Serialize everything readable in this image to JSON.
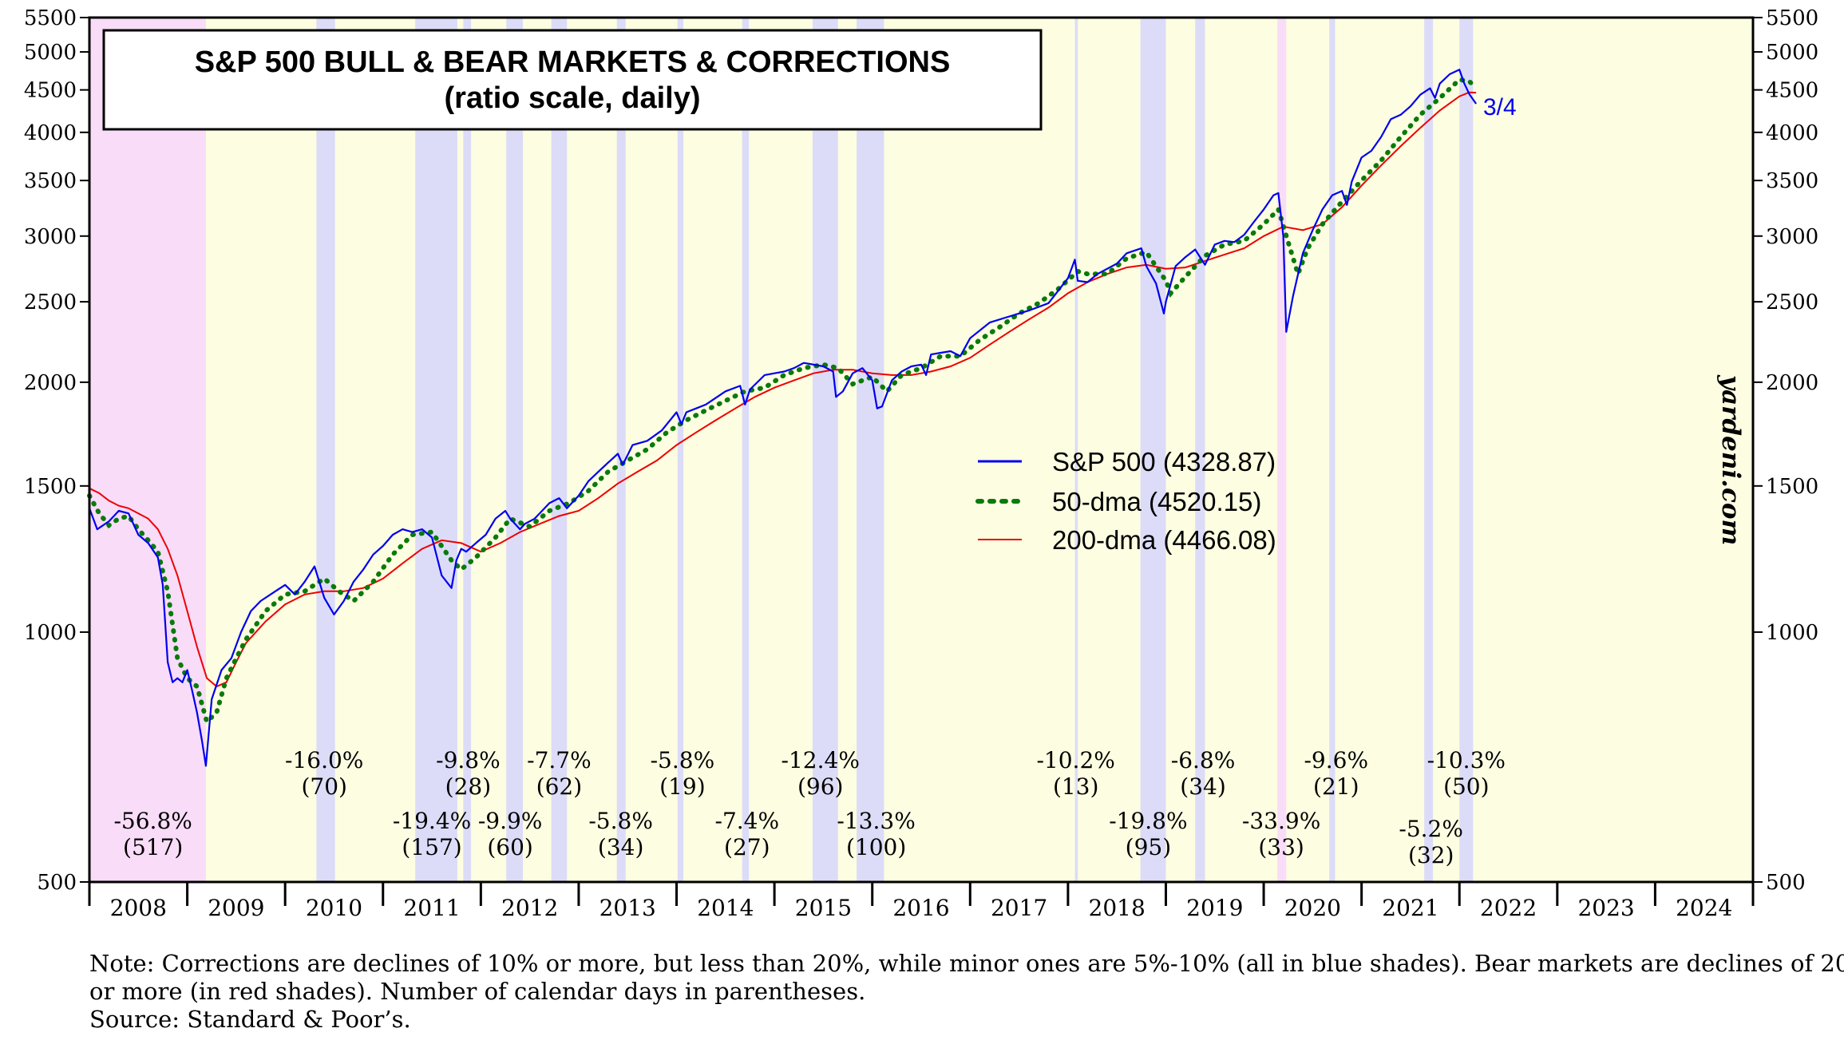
{
  "chart_data": {
    "type": "line",
    "title": "S&P 500 BULL & BEAR MARKETS & CORRECTIONS",
    "subtitle": "(ratio scale, daily)",
    "y_scale": "log",
    "ylim": [
      500,
      5500
    ],
    "y_ticks": [
      500,
      1000,
      1500,
      2000,
      2500,
      3000,
      3500,
      4000,
      4500,
      5000,
      5500
    ],
    "x_range": [
      2008.0,
      2025.0
    ],
    "x_tick_labels": [
      "2008",
      "2009",
      "2010",
      "2011",
      "2012",
      "2013",
      "2014",
      "2015",
      "2016",
      "2017",
      "2018",
      "2019",
      "2020",
      "2021",
      "2022",
      "2023",
      "2024"
    ],
    "legend": {
      "placement": "center-right",
      "entries": [
        {
          "label": "S&P 500 (4328.87)",
          "color": "#0000ee",
          "style": "solid"
        },
        {
          "label": "50-dma (4520.15)",
          "color": "#0a7a0a",
          "style": "dotted"
        },
        {
          "label": "200-dma (4466.08)",
          "color": "#ee0000",
          "style": "solid"
        }
      ]
    },
    "end_label": "3/4",
    "watermark": "yardeni.com",
    "colors": {
      "bear": "#f8dcf8",
      "correction": "#dcdcf8",
      "background": "#fdfde2",
      "sp500": "#0000ee",
      "dma50": "#0a7a0a",
      "dma200": "#ee0000"
    },
    "shaded_periods": [
      {
        "kind": "bear",
        "start": 2007.78,
        "end": 2009.19
      },
      {
        "kind": "correction",
        "start": 2010.32,
        "end": 2010.51
      },
      {
        "kind": "correction",
        "start": 2011.33,
        "end": 2011.76
      },
      {
        "kind": "correction",
        "start": 2011.82,
        "end": 2011.9
      },
      {
        "kind": "correction",
        "start": 2012.26,
        "end": 2012.43
      },
      {
        "kind": "correction",
        "start": 2012.72,
        "end": 2012.88
      },
      {
        "kind": "correction",
        "start": 2013.39,
        "end": 2013.48
      },
      {
        "kind": "correction",
        "start": 2014.01,
        "end": 2014.07
      },
      {
        "kind": "correction",
        "start": 2014.67,
        "end": 2014.74
      },
      {
        "kind": "correction",
        "start": 2015.39,
        "end": 2015.65
      },
      {
        "kind": "correction",
        "start": 2015.84,
        "end": 2016.12
      },
      {
        "kind": "correction",
        "start": 2018.07,
        "end": 2018.1
      },
      {
        "kind": "correction",
        "start": 2018.74,
        "end": 2019.0
      },
      {
        "kind": "correction",
        "start": 2019.3,
        "end": 2019.4
      },
      {
        "kind": "bear",
        "start": 2020.14,
        "end": 2020.23
      },
      {
        "kind": "correction",
        "start": 2020.67,
        "end": 2020.73
      },
      {
        "kind": "correction",
        "start": 2021.64,
        "end": 2021.73
      },
      {
        "kind": "correction",
        "start": 2022.0,
        "end": 2022.14
      }
    ],
    "annotations": [
      {
        "x": 2008.65,
        "pct": "-56.8%",
        "days": "(517)",
        "row": 3
      },
      {
        "x": 2010.4,
        "pct": "-16.0%",
        "days": "(70)",
        "row": 1
      },
      {
        "x": 2011.5,
        "pct": "-19.4%",
        "days": "(157)",
        "row": 3
      },
      {
        "x": 2011.87,
        "pct": "-9.8%",
        "days": "(28)",
        "row": 1
      },
      {
        "x": 2012.3,
        "pct": "-9.9%",
        "days": "(60)",
        "row": 3
      },
      {
        "x": 2012.8,
        "pct": "-7.7%",
        "days": "(62)",
        "row": 1
      },
      {
        "x": 2013.43,
        "pct": "-5.8%",
        "days": "(34)",
        "row": 3
      },
      {
        "x": 2014.06,
        "pct": "-5.8%",
        "days": "(19)",
        "row": 1
      },
      {
        "x": 2014.72,
        "pct": "-7.4%",
        "days": "(27)",
        "row": 3
      },
      {
        "x": 2015.47,
        "pct": "-12.4%",
        "days": "(96)",
        "row": 1
      },
      {
        "x": 2016.04,
        "pct": "-13.3%",
        "days": "(100)",
        "row": 3
      },
      {
        "x": 2018.08,
        "pct": "-10.2%",
        "days": "(13)",
        "row": 1
      },
      {
        "x": 2018.82,
        "pct": "-19.8%",
        "days": "(95)",
        "row": 3
      },
      {
        "x": 2019.38,
        "pct": "-6.8%",
        "days": "(34)",
        "row": 1
      },
      {
        "x": 2020.18,
        "pct": "-33.9%",
        "days": "(33)",
        "row": 3
      },
      {
        "x": 2020.74,
        "pct": "-9.6%",
        "days": "(21)",
        "row": 1
      },
      {
        "x": 2021.71,
        "pct": "-5.2%",
        "days": "(32)",
        "row": 4
      },
      {
        "x": 2022.07,
        "pct": "-10.3%",
        "days": "(50)",
        "row": 1
      }
    ],
    "series": [
      {
        "name": "S&P 500",
        "x": [
          2008.0,
          2008.08,
          2008.2,
          2008.3,
          2008.4,
          2008.5,
          2008.6,
          2008.7,
          2008.75,
          2008.8,
          2008.85,
          2008.9,
          2008.95,
          2009.0,
          2009.05,
          2009.1,
          2009.15,
          2009.19,
          2009.25,
          2009.35,
          2009.45,
          2009.55,
          2009.65,
          2009.75,
          2009.9,
          2010.0,
          2010.1,
          2010.2,
          2010.3,
          2010.4,
          2010.5,
          2010.6,
          2010.7,
          2010.8,
          2010.9,
          2011.0,
          2011.1,
          2011.2,
          2011.3,
          2011.4,
          2011.5,
          2011.6,
          2011.7,
          2011.75,
          2011.8,
          2011.85,
          2011.95,
          2012.05,
          2012.15,
          2012.25,
          2012.3,
          2012.4,
          2012.45,
          2012.55,
          2012.7,
          2012.8,
          2012.88,
          2013.0,
          2013.1,
          2013.2,
          2013.3,
          2013.4,
          2013.45,
          2013.55,
          2013.7,
          2013.85,
          2014.0,
          2014.05,
          2014.1,
          2014.2,
          2014.3,
          2014.5,
          2014.65,
          2014.7,
          2014.75,
          2014.9,
          2015.0,
          2015.1,
          2015.2,
          2015.3,
          2015.4,
          2015.5,
          2015.6,
          2015.63,
          2015.7,
          2015.8,
          2015.9,
          2016.0,
          2016.05,
          2016.1,
          2016.2,
          2016.3,
          2016.4,
          2016.5,
          2016.55,
          2016.6,
          2016.7,
          2016.8,
          2016.9,
          2017.0,
          2017.2,
          2017.4,
          2017.6,
          2017.8,
          2018.0,
          2018.07,
          2018.1,
          2018.2,
          2018.3,
          2018.5,
          2018.6,
          2018.75,
          2018.8,
          2018.9,
          2018.98,
          2019.0,
          2019.1,
          2019.2,
          2019.3,
          2019.4,
          2019.5,
          2019.6,
          2019.7,
          2019.8,
          2019.9,
          2020.0,
          2020.1,
          2020.15,
          2020.2,
          2020.23,
          2020.3,
          2020.4,
          2020.5,
          2020.6,
          2020.7,
          2020.8,
          2020.85,
          2020.9,
          2021.0,
          2021.1,
          2021.2,
          2021.3,
          2021.4,
          2021.5,
          2021.6,
          2021.7,
          2021.75,
          2021.8,
          2021.9,
          2022.0,
          2022.05,
          2022.1,
          2022.17
        ],
        "values": [
          1410,
          1330,
          1360,
          1400,
          1390,
          1310,
          1280,
          1230,
          1140,
          920,
          870,
          880,
          870,
          900,
          850,
          800,
          740,
          690,
          830,
          900,
          930,
          1000,
          1060,
          1090,
          1120,
          1140,
          1110,
          1150,
          1200,
          1100,
          1050,
          1090,
          1150,
          1190,
          1240,
          1270,
          1310,
          1330,
          1320,
          1330,
          1300,
          1170,
          1130,
          1220,
          1260,
          1250,
          1280,
          1310,
          1370,
          1400,
          1370,
          1330,
          1350,
          1370,
          1430,
          1450,
          1410,
          1460,
          1520,
          1560,
          1600,
          1640,
          1590,
          1680,
          1700,
          1750,
          1840,
          1780,
          1840,
          1860,
          1880,
          1950,
          1980,
          1880,
          1960,
          2040,
          2050,
          2060,
          2080,
          2110,
          2100,
          2090,
          2060,
          1920,
          1950,
          2050,
          2080,
          2010,
          1860,
          1870,
          2010,
          2060,
          2090,
          2100,
          2040,
          2160,
          2170,
          2180,
          2150,
          2260,
          2360,
          2400,
          2440,
          2490,
          2670,
          2810,
          2650,
          2640,
          2700,
          2780,
          2860,
          2900,
          2760,
          2630,
          2420,
          2500,
          2760,
          2830,
          2890,
          2770,
          2930,
          2960,
          2950,
          3010,
          3120,
          3230,
          3360,
          3380,
          3000,
          2300,
          2540,
          2860,
          3050,
          3230,
          3360,
          3400,
          3270,
          3490,
          3730,
          3800,
          3950,
          4150,
          4200,
          4300,
          4440,
          4520,
          4400,
          4580,
          4700,
          4760,
          4580,
          4450,
          4330
        ]
      },
      {
        "name": "50-dma",
        "x": [
          2008.0,
          2008.1,
          2008.2,
          2008.3,
          2008.4,
          2008.5,
          2008.6,
          2008.7,
          2008.8,
          2008.9,
          2009.0,
          2009.1,
          2009.2,
          2009.3,
          2009.4,
          2009.5,
          2009.6,
          2009.8,
          2010.0,
          2010.2,
          2010.4,
          2010.55,
          2010.7,
          2010.9,
          2011.1,
          2011.3,
          2011.5,
          2011.7,
          2011.8,
          2011.95,
          2012.15,
          2012.3,
          2012.5,
          2012.7,
          2012.9,
          2013.1,
          2013.3,
          2013.5,
          2013.7,
          2013.9,
          2014.1,
          2014.3,
          2014.5,
          2014.7,
          2014.9,
          2015.1,
          2015.3,
          2015.5,
          2015.65,
          2015.8,
          2016.0,
          2016.15,
          2016.3,
          2016.5,
          2016.7,
          2016.9,
          2017.1,
          2017.3,
          2017.5,
          2017.7,
          2017.9,
          2018.1,
          2018.2,
          2018.4,
          2018.6,
          2018.8,
          2019.0,
          2019.05,
          2019.2,
          2019.4,
          2019.6,
          2019.8,
          2020.0,
          2020.15,
          2020.25,
          2020.35,
          2020.45,
          2020.6,
          2020.8,
          2021.0,
          2021.2,
          2021.4,
          2021.6,
          2021.8,
          2022.0,
          2022.1,
          2022.17
        ],
        "values": [
          1460,
          1390,
          1345,
          1370,
          1380,
          1330,
          1290,
          1250,
          1120,
          930,
          880,
          860,
          780,
          800,
          880,
          930,
          980,
          1060,
          1110,
          1120,
          1160,
          1120,
          1090,
          1150,
          1240,
          1310,
          1320,
          1220,
          1190,
          1230,
          1300,
          1370,
          1340,
          1400,
          1430,
          1480,
          1560,
          1610,
          1660,
          1740,
          1800,
          1850,
          1900,
          1950,
          1970,
          2040,
          2080,
          2100,
          2080,
          1990,
          2030,
          1950,
          2040,
          2080,
          2150,
          2150,
          2250,
          2330,
          2420,
          2490,
          2590,
          2720,
          2700,
          2700,
          2820,
          2870,
          2650,
          2560,
          2680,
          2840,
          2930,
          2960,
          3100,
          3230,
          2950,
          2700,
          2900,
          3100,
          3300,
          3500,
          3700,
          3950,
          4200,
          4400,
          4630,
          4610,
          4520
        ]
      },
      {
        "name": "200-dma",
        "x": [
          2008.0,
          2008.1,
          2008.2,
          2008.3,
          2008.4,
          2008.5,
          2008.6,
          2008.7,
          2008.8,
          2008.9,
          2009.0,
          2009.1,
          2009.2,
          2009.3,
          2009.4,
          2009.5,
          2009.6,
          2009.8,
          2010.0,
          2010.2,
          2010.4,
          2010.6,
          2010.8,
          2011.0,
          2011.2,
          2011.4,
          2011.6,
          2011.8,
          2012.0,
          2012.2,
          2012.4,
          2012.6,
          2012.8,
          2013.0,
          2013.2,
          2013.4,
          2013.6,
          2013.8,
          2014.0,
          2014.2,
          2014.4,
          2014.6,
          2014.8,
          2015.0,
          2015.2,
          2015.4,
          2015.6,
          2015.8,
          2016.0,
          2016.2,
          2016.4,
          2016.6,
          2016.8,
          2017.0,
          2017.2,
          2017.4,
          2017.6,
          2017.8,
          2018.0,
          2018.2,
          2018.4,
          2018.6,
          2018.8,
          2019.0,
          2019.2,
          2019.4,
          2019.6,
          2019.8,
          2020.0,
          2020.2,
          2020.4,
          2020.6,
          2020.8,
          2021.0,
          2021.2,
          2021.4,
          2021.6,
          2021.8,
          2022.0,
          2022.1,
          2022.17
        ],
        "values": [
          1490,
          1470,
          1440,
          1420,
          1410,
          1390,
          1370,
          1330,
          1260,
          1170,
          1060,
          960,
          880,
          860,
          870,
          920,
          970,
          1030,
          1080,
          1110,
          1120,
          1120,
          1130,
          1160,
          1210,
          1260,
          1290,
          1280,
          1250,
          1280,
          1320,
          1350,
          1380,
          1400,
          1450,
          1510,
          1560,
          1610,
          1680,
          1740,
          1800,
          1860,
          1920,
          1970,
          2010,
          2050,
          2070,
          2070,
          2050,
          2040,
          2040,
          2060,
          2090,
          2140,
          2220,
          2300,
          2380,
          2460,
          2560,
          2640,
          2700,
          2750,
          2770,
          2740,
          2750,
          2800,
          2850,
          2900,
          3000,
          3080,
          3050,
          3100,
          3250,
          3450,
          3650,
          3850,
          4050,
          4250,
          4420,
          4470,
          4466
        ]
      }
    ]
  }
}
